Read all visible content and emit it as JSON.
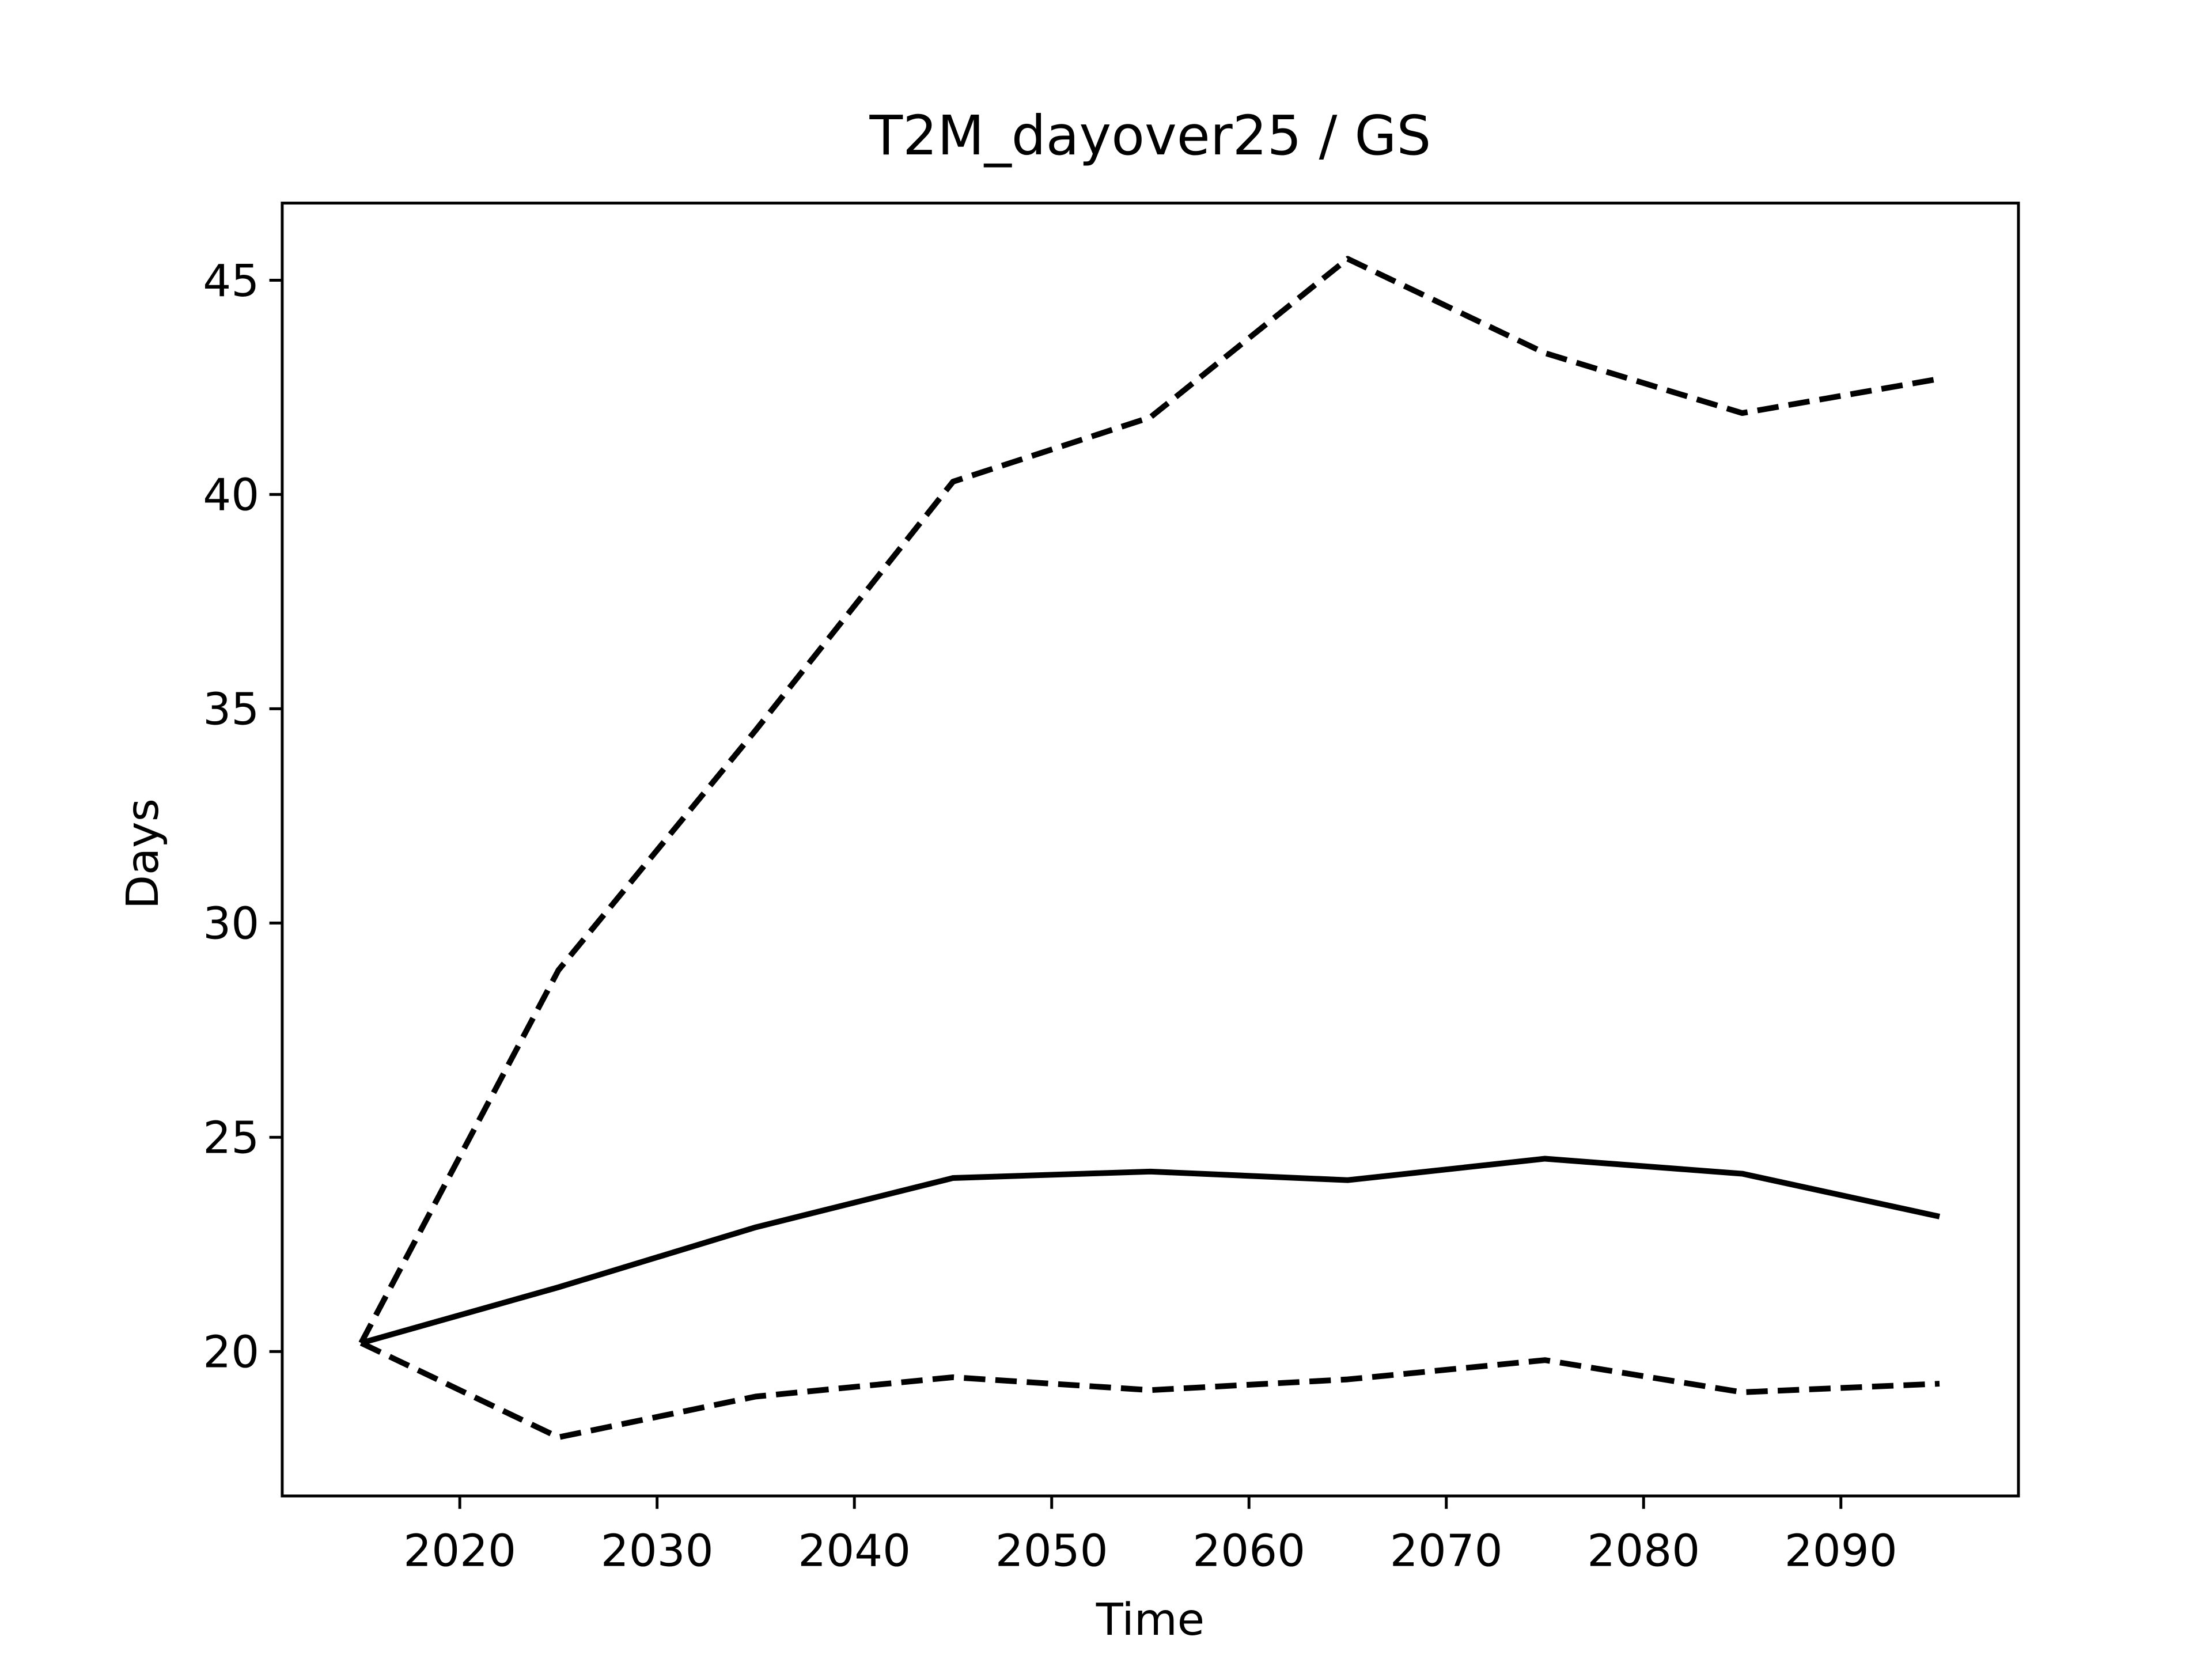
{
  "chart_data": {
    "type": "line",
    "title": "T2M_dayover25 / GS",
    "xlabel": "Time",
    "ylabel": "Days",
    "x": [
      2015,
      2025,
      2035,
      2045,
      2055,
      2065,
      2075,
      2085,
      2095
    ],
    "series": [
      {
        "color": "#000000",
        "dash": true,
        "values": [
          20.2,
          28.9,
          34.5,
          40.3,
          41.8,
          45.5,
          43.3,
          41.9,
          42.7
        ]
      },
      {
        "color": "#000000",
        "dash": false,
        "values": [
          20.2,
          21.5,
          22.9,
          24.05,
          24.2,
          24.0,
          24.5,
          24.15,
          23.15
        ]
      },
      {
        "color": "#000000",
        "dash": true,
        "values": [
          20.2,
          18.0,
          18.95,
          19.4,
          19.1,
          19.35,
          19.8,
          19.05,
          19.25
        ]
      }
    ],
    "xlim": [
      2011,
      2099
    ],
    "ylim": [
      16.63,
      46.8
    ],
    "xticks": [
      2020,
      2030,
      2040,
      2050,
      2060,
      2070,
      2080,
      2090
    ],
    "yticks": [
      20,
      25,
      30,
      35,
      40,
      45
    ],
    "grid": false
  }
}
